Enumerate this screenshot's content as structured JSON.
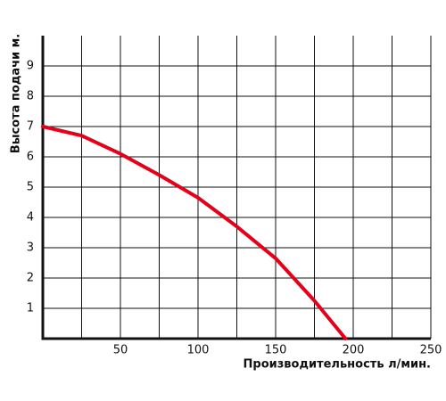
{
  "chart_data": {
    "type": "line",
    "x_label": "Производительность л/мин.",
    "y_label": "Высота подачи м.",
    "xlim": [
      0,
      250
    ],
    "xticks": [
      50,
      100,
      150,
      200,
      250
    ],
    "xminor": [
      25,
      75,
      125,
      175,
      225
    ],
    "ylim": [
      0,
      10
    ],
    "yticks": [
      1,
      2,
      3,
      4,
      5,
      6,
      7,
      8,
      9
    ],
    "grid": true,
    "series": [
      {
        "color": "#e3001b",
        "x": [
          0,
          25,
          50,
          75,
          100,
          125,
          150,
          175,
          195
        ],
        "values": [
          7,
          6.7,
          6.1,
          5.4,
          4.65,
          3.7,
          2.65,
          1.25,
          0
        ]
      }
    ]
  }
}
